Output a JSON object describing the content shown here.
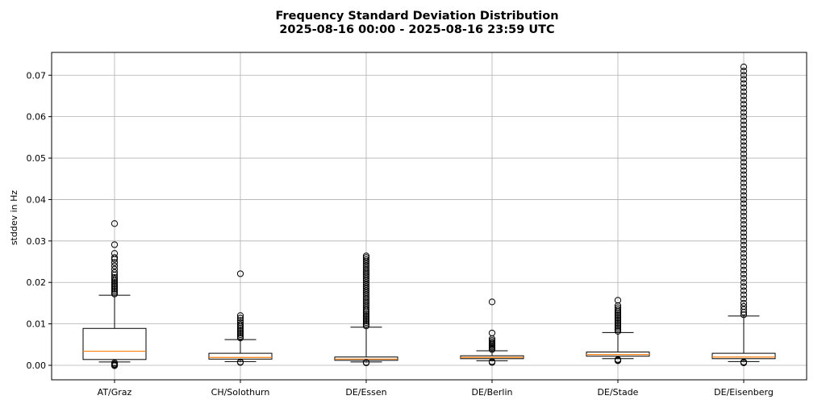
{
  "colors": {
    "median": "#ff7f0e",
    "box_edge": "#000000",
    "grid": "#b0b0b0",
    "background": "#ffffff"
  },
  "chart_data": {
    "type": "box",
    "title_line1": "Frequency Standard Deviation Distribution",
    "title_line2": "2025-08-16 00:00 - 2025-08-16 23:59 UTC",
    "xlabel": "",
    "ylabel": "stddev in Hz",
    "ylim": [
      -0.0035,
      0.0755
    ],
    "yticks": [
      0.0,
      0.01,
      0.02,
      0.03,
      0.04,
      0.05,
      0.06,
      0.07
    ],
    "ytick_labels": [
      "0.00",
      "0.01",
      "0.02",
      "0.03",
      "0.04",
      "0.05",
      "0.06",
      "0.07"
    ],
    "grid": true,
    "categories": [
      "AT/Graz",
      "CH/Solothurn",
      "DE/Essen",
      "DE/Berlin",
      "DE/Stade",
      "DE/Eisenberg"
    ],
    "boxes": [
      {
        "label": "AT/Graz",
        "whisker_low": 0.0008,
        "q1": 0.0014,
        "median": 0.0034,
        "q3": 0.0089,
        "whisker_high": 0.0169,
        "outliers_high": [
          0.0172,
          0.0176,
          0.018,
          0.0184,
          0.0188,
          0.0192,
          0.0196,
          0.02,
          0.0204,
          0.0208,
          0.0212,
          0.0218,
          0.0224,
          0.0232,
          0.024,
          0.0248,
          0.0256,
          0.026,
          0.027,
          0.0291,
          0.0342
        ],
        "outliers_low": [
          0.0006,
          0.0003,
          0.0001,
          -0.0001
        ]
      },
      {
        "label": "CH/Solothurn",
        "whisker_low": 0.0009,
        "q1": 0.0015,
        "median": 0.0019,
        "q3": 0.0029,
        "whisker_high": 0.0062,
        "outliers_high": [
          0.0066,
          0.007,
          0.0074,
          0.0078,
          0.0082,
          0.0086,
          0.009,
          0.0094,
          0.0098,
          0.0103,
          0.0108,
          0.0114,
          0.012,
          0.0221
        ],
        "outliers_low": [
          0.0008,
          0.0007
        ]
      },
      {
        "label": "DE/Essen",
        "whisker_low": 0.0008,
        "q1": 0.0012,
        "median": 0.0015,
        "q3": 0.002,
        "whisker_high": 0.0092,
        "outliers_high": [
          0.0095,
          0.0099,
          0.0103,
          0.0107,
          0.0111,
          0.0115,
          0.0119,
          0.0123,
          0.0127,
          0.0131,
          0.0135,
          0.014,
          0.0145,
          0.015,
          0.0155,
          0.016,
          0.0165,
          0.017,
          0.0175,
          0.018,
          0.0185,
          0.019,
          0.0195,
          0.02,
          0.0205,
          0.021,
          0.0215,
          0.022,
          0.0225,
          0.023,
          0.0235,
          0.024,
          0.0245,
          0.025,
          0.0255,
          0.026,
          0.0264
        ],
        "outliers_low": [
          0.0007,
          0.0006
        ]
      },
      {
        "label": "DE/Berlin",
        "whisker_low": 0.0011,
        "q1": 0.0016,
        "median": 0.0019,
        "q3": 0.0023,
        "whisker_high": 0.0035,
        "outliers_high": [
          0.0038,
          0.0041,
          0.0044,
          0.0047,
          0.005,
          0.0053,
          0.0056,
          0.006,
          0.0064,
          0.0078,
          0.0153
        ],
        "outliers_low": [
          0.0009,
          0.0007
        ]
      },
      {
        "label": "DE/Stade",
        "whisker_low": 0.0016,
        "q1": 0.0022,
        "median": 0.0026,
        "q3": 0.0032,
        "whisker_high": 0.0079,
        "outliers_high": [
          0.0082,
          0.0086,
          0.009,
          0.0094,
          0.0098,
          0.0102,
          0.0106,
          0.011,
          0.0114,
          0.0118,
          0.0122,
          0.0126,
          0.013,
          0.0134,
          0.0139,
          0.0144,
          0.0157
        ],
        "outliers_low": [
          0.0014,
          0.0012,
          0.0011
        ]
      },
      {
        "label": "DE/Eisenberg",
        "whisker_low": 0.0009,
        "q1": 0.0016,
        "median": 0.002,
        "q3": 0.0029,
        "whisker_high": 0.0119,
        "outliers_high": [
          0.0122,
          0.0128,
          0.0135,
          0.0142,
          0.015,
          0.016,
          0.017,
          0.018,
          0.019,
          0.02,
          0.021,
          0.022,
          0.023,
          0.024,
          0.025,
          0.026,
          0.027,
          0.028,
          0.029,
          0.03,
          0.031,
          0.032,
          0.033,
          0.034,
          0.035,
          0.036,
          0.037,
          0.038,
          0.039,
          0.04,
          0.041,
          0.042,
          0.043,
          0.044,
          0.045,
          0.046,
          0.047,
          0.048,
          0.049,
          0.05,
          0.051,
          0.052,
          0.053,
          0.054,
          0.055,
          0.056,
          0.057,
          0.058,
          0.059,
          0.06,
          0.061,
          0.062,
          0.063,
          0.064,
          0.065,
          0.066,
          0.067,
          0.068,
          0.069,
          0.07,
          0.071,
          0.072
        ],
        "outliers_low": [
          0.0008,
          0.0006
        ]
      }
    ]
  }
}
